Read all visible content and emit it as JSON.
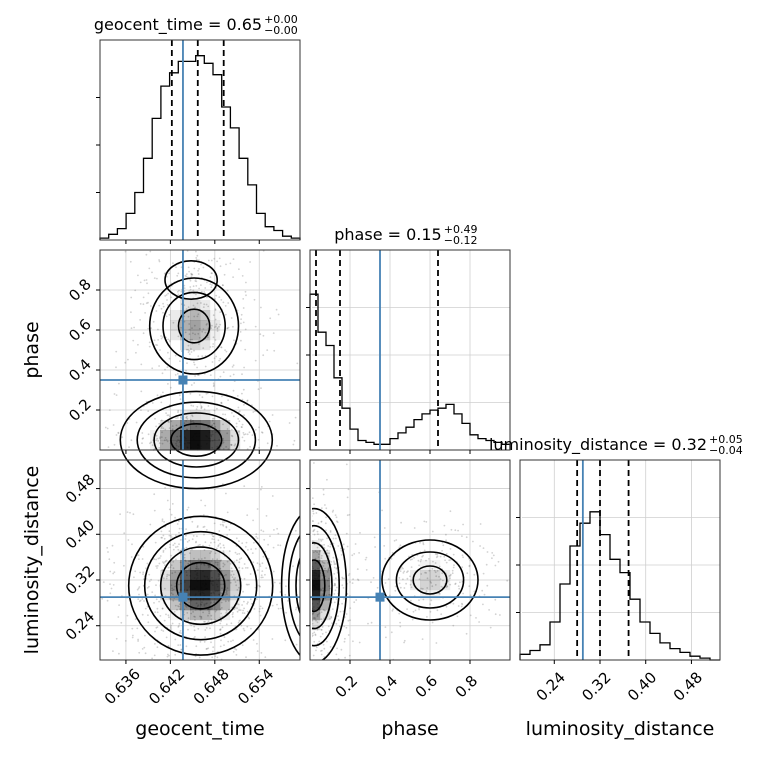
{
  "chart_data": {
    "type": "corner",
    "parameters": [
      "geocent_time",
      "phase",
      "luminosity_distance"
    ],
    "truths": {
      "geocent_time": 0.6437,
      "phase": 0.35,
      "luminosity_distance": 0.29
    },
    "ranges": {
      "geocent_time": [
        0.6325,
        0.6595
      ],
      "phase": [
        0.0,
        1.0
      ],
      "luminosity_distance": [
        0.18,
        0.53
      ]
    },
    "ticks": {
      "geocent_time": {
        "values": [
          0.636,
          0.642,
          0.648,
          0.654
        ],
        "labels": [
          "0.636",
          "0.642",
          "0.648",
          "0.654"
        ]
      },
      "phase": {
        "values": [
          0.2,
          0.4,
          0.6,
          0.8
        ],
        "labels": [
          "0.2",
          "0.4",
          "0.6",
          "0.8"
        ]
      },
      "luminosity_distance": {
        "values": [
          0.24,
          0.32,
          0.4,
          0.48
        ],
        "labels": [
          "0.24",
          "0.32",
          "0.40",
          "0.48"
        ]
      }
    },
    "axis_labels": {
      "geocent_time": "geocent_time",
      "phase": "phase",
      "luminosity_distance": "luminosity_distance"
    },
    "titles": [
      {
        "param": "geocent_time",
        "text": "geocent_time = 0.65",
        "plus": "+0.00",
        "minus": "−0.00"
      },
      {
        "param": "phase",
        "text": "phase = 0.15",
        "plus": "+0.49",
        "minus": "−0.12"
      },
      {
        "param": "luminosity_distance",
        "text": "luminosity_distance = 0.32",
        "plus": "+0.05",
        "minus": "−0.04"
      }
    ],
    "quantiles": {
      "geocent_time": [
        0.6422,
        0.6457,
        0.6492
      ],
      "phase": [
        0.03,
        0.15,
        0.64
      ],
      "luminosity_distance": [
        0.28,
        0.32,
        0.37
      ]
    },
    "histograms": {
      "geocent_time": [
        0.01,
        0.03,
        0.06,
        0.14,
        0.25,
        0.43,
        0.64,
        0.81,
        0.88,
        0.94,
        0.94,
        0.97,
        0.93,
        0.87,
        0.7,
        0.59,
        0.43,
        0.29,
        0.14,
        0.07,
        0.05,
        0.02,
        0.01
      ],
      "phase": [
        0.82,
        0.62,
        0.55,
        0.38,
        0.22,
        0.11,
        0.05,
        0.04,
        0.03,
        0.03,
        0.06,
        0.09,
        0.12,
        0.16,
        0.19,
        0.21,
        0.22,
        0.24,
        0.19,
        0.14,
        0.08,
        0.06,
        0.05,
        0.04,
        0.03
      ],
      "luminosity_distance": [
        0.03,
        0.05,
        0.08,
        0.2,
        0.4,
        0.6,
        0.72,
        0.78,
        0.66,
        0.53,
        0.46,
        0.32,
        0.2,
        0.14,
        0.09,
        0.06,
        0.04,
        0.02,
        0.01,
        0.0
      ]
    },
    "densities": [
      {
        "x": "geocent_time",
        "y": "phase",
        "blobs": [
          {
            "cx": 0.6455,
            "cy": 0.05,
            "sx": 0.0038,
            "sy": 0.09,
            "w": 1.0
          },
          {
            "cx": 0.6452,
            "cy": 0.62,
            "sx": 0.003,
            "sy": 0.12,
            "w": 0.55
          },
          {
            "cx": 0.6448,
            "cy": 0.85,
            "sx": 0.0022,
            "sy": 0.06,
            "w": 0.18
          }
        ]
      },
      {
        "x": "geocent_time",
        "y": "luminosity_distance",
        "blobs": [
          {
            "cx": 0.6461,
            "cy": 0.31,
            "sx": 0.0036,
            "sy": 0.045,
            "w": 1.0
          }
        ]
      },
      {
        "x": "phase",
        "y": "luminosity_distance",
        "blobs": [
          {
            "cx": 0.02,
            "cy": 0.31,
            "sx": 0.06,
            "sy": 0.05,
            "w": 1.0
          },
          {
            "cx": 0.6,
            "cy": 0.32,
            "sx": 0.12,
            "sy": 0.035,
            "w": 0.45
          }
        ]
      }
    ],
    "colors": {
      "truth": "#4682b4",
      "hist": "#000000",
      "grid": "#cfcfcf",
      "scatter": "#7f7f7f",
      "density": "#000000"
    },
    "grid": true
  }
}
